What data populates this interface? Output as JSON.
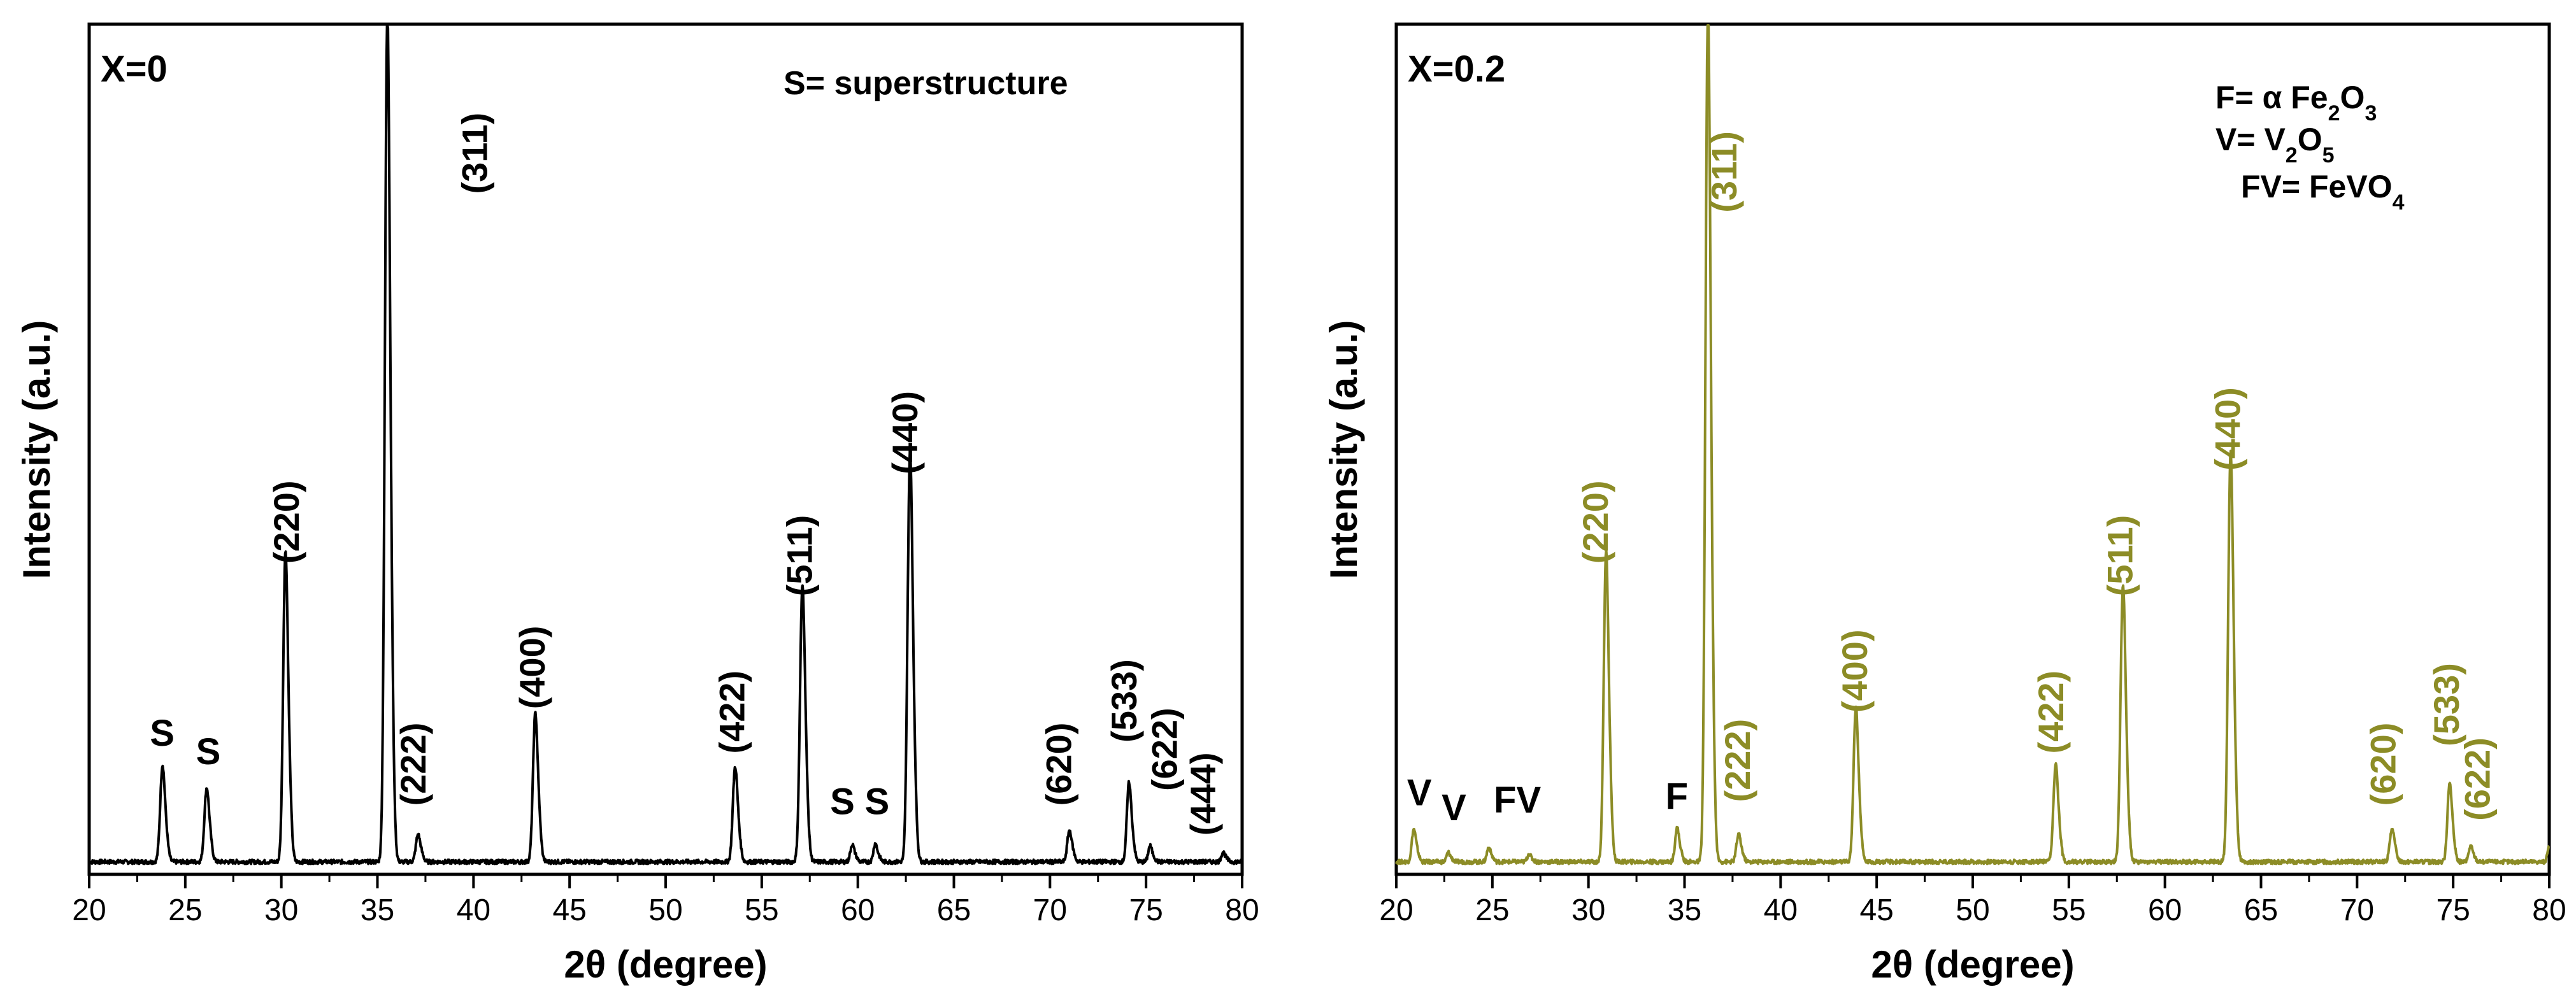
{
  "chart_data": [
    {
      "type": "line",
      "panel_label": "X=0",
      "legend": [
        "S= superstructure"
      ],
      "xlabel": "2θ (degree)",
      "ylabel": "Intensity (a.u.)",
      "xlim": [
        20,
        80
      ],
      "ylim": [
        0,
        100
      ],
      "x_ticks": [
        "20",
        "25",
        "30",
        "35",
        "40",
        "45",
        "50",
        "55",
        "60",
        "65",
        "70",
        "75",
        "80"
      ],
      "series_color": "#000000",
      "label_color": "#000000",
      "peaks": [
        {
          "x": 23.8,
          "y": 11.5,
          "w": 0.16
        },
        {
          "x": 26.1,
          "y": 8.8,
          "w": 0.16
        },
        {
          "x": 30.2,
          "y": 37,
          "w": 0.16
        },
        {
          "x": 35.5,
          "y": 100,
          "w": 0.17
        },
        {
          "x": 37.1,
          "y": 3.3,
          "w": 0.15
        },
        {
          "x": 43.2,
          "y": 17.7,
          "w": 0.16
        },
        {
          "x": 53.6,
          "y": 11.3,
          "w": 0.16
        },
        {
          "x": 57.1,
          "y": 32.4,
          "w": 0.17
        },
        {
          "x": 59.7,
          "y": 2.2,
          "w": 0.13
        },
        {
          "x": 60.9,
          "y": 2.3,
          "w": 0.13
        },
        {
          "x": 62.7,
          "y": 48.2,
          "w": 0.17
        },
        {
          "x": 71.0,
          "y": 3.8,
          "w": 0.15
        },
        {
          "x": 74.1,
          "y": 9.6,
          "w": 0.15
        },
        {
          "x": 75.2,
          "y": 2.0,
          "w": 0.13
        },
        {
          "x": 79.0,
          "y": 1.2,
          "w": 0.13
        }
      ],
      "annotations": [
        {
          "text": "S",
          "x": 23.8,
          "y": 16,
          "rot": false
        },
        {
          "text": "S",
          "x": 26.2,
          "y": 13.5,
          "rot": false
        },
        {
          "text": "(220)",
          "x": 30.9,
          "y": 46,
          "rot": true
        },
        {
          "text": "(311)",
          "x": 40.7,
          "y": 95.5,
          "rot": true
        },
        {
          "text": "(222)",
          "x": 37.5,
          "y": 13.5,
          "rot": true
        },
        {
          "text": "(400)",
          "x": 43.7,
          "y": 26.5,
          "rot": true
        },
        {
          "text": "(422)",
          "x": 54.1,
          "y": 20.5,
          "rot": true
        },
        {
          "text": "(511)",
          "x": 57.6,
          "y": 41.5,
          "rot": true
        },
        {
          "text": "S",
          "x": 59.2,
          "y": 6.8,
          "rot": false
        },
        {
          "text": "S",
          "x": 61.0,
          "y": 6.8,
          "rot": false
        },
        {
          "text": "(440)",
          "x": 63.1,
          "y": 58,
          "rot": true
        },
        {
          "text": "(620)",
          "x": 71.1,
          "y": 13.5,
          "rot": true
        },
        {
          "text": "(533)",
          "x": 74.5,
          "y": 22,
          "rot": true
        },
        {
          "text": "(622)",
          "x": 76.6,
          "y": 15.5,
          "rot": true
        },
        {
          "text": "(444)",
          "x": 78.6,
          "y": 9.5,
          "rot": true
        }
      ]
    },
    {
      "type": "line",
      "panel_label": "X=0.2",
      "legend": [
        "F= α Fe₂O₃",
        "V= V₂O₅",
        "FV= FeVO₄"
      ],
      "xlabel": "2θ (degree)",
      "ylabel": "Intensity (a.u.)",
      "xlim": [
        20,
        80
      ],
      "ylim": [
        0,
        100
      ],
      "x_ticks": [
        "20",
        "25",
        "30",
        "35",
        "40",
        "45",
        "50",
        "55",
        "60",
        "65",
        "70",
        "75",
        "80"
      ],
      "series_color": "#8c8c26",
      "label_color": "#8c8c26",
      "peaks": [
        {
          "x": 20.9,
          "y": 4.0,
          "w": 0.14
        },
        {
          "x": 22.7,
          "y": 1.2,
          "w": 0.12
        },
        {
          "x": 24.8,
          "y": 1.8,
          "w": 0.13
        },
        {
          "x": 26.9,
          "y": 1.0,
          "w": 0.12
        },
        {
          "x": 30.9,
          "y": 37,
          "w": 0.16
        },
        {
          "x": 34.6,
          "y": 4.2,
          "w": 0.14
        },
        {
          "x": 36.2,
          "y": 100,
          "w": 0.17
        },
        {
          "x": 37.8,
          "y": 3.3,
          "w": 0.15
        },
        {
          "x": 43.9,
          "y": 18.4,
          "w": 0.16
        },
        {
          "x": 54.3,
          "y": 11.5,
          "w": 0.16
        },
        {
          "x": 57.8,
          "y": 32.3,
          "w": 0.17
        },
        {
          "x": 63.4,
          "y": 48.2,
          "w": 0.17
        },
        {
          "x": 71.8,
          "y": 4.0,
          "w": 0.15
        },
        {
          "x": 74.8,
          "y": 9.6,
          "w": 0.15
        },
        {
          "x": 75.9,
          "y": 2.0,
          "w": 0.13
        },
        {
          "x": 80.0,
          "y": 1.8,
          "w": 0.13
        }
      ],
      "annotations": [
        {
          "text": "V",
          "x": 21.2,
          "y": 8,
          "rot": false,
          "color": "#000000"
        },
        {
          "text": "V",
          "x": 23.0,
          "y": 6,
          "rot": false,
          "color": "#000000"
        },
        {
          "text": "FV",
          "x": 26.3,
          "y": 7,
          "rot": false,
          "color": "#000000"
        },
        {
          "text": "F",
          "x": 34.6,
          "y": 7.5,
          "rot": false,
          "color": "#000000"
        },
        {
          "text": "(220)",
          "x": 31.0,
          "y": 46,
          "rot": true
        },
        {
          "text": "(311)",
          "x": 37.7,
          "y": 93,
          "rot": true
        },
        {
          "text": "(222)",
          "x": 38.4,
          "y": 14,
          "rot": true
        },
        {
          "text": "(400)",
          "x": 44.5,
          "y": 26,
          "rot": true
        },
        {
          "text": "(422)",
          "x": 54.7,
          "y": 20.5,
          "rot": true
        },
        {
          "text": "(511)",
          "x": 58.3,
          "y": 41.5,
          "rot": true
        },
        {
          "text": "(440)",
          "x": 63.9,
          "y": 58.5,
          "rot": true
        },
        {
          "text": "(620)",
          "x": 72.0,
          "y": 13.5,
          "rot": true
        },
        {
          "text": "(533)",
          "x": 75.3,
          "y": 21.5,
          "rot": true
        },
        {
          "text": "(622)",
          "x": 76.9,
          "y": 11.5,
          "rot": true
        }
      ]
    }
  ]
}
